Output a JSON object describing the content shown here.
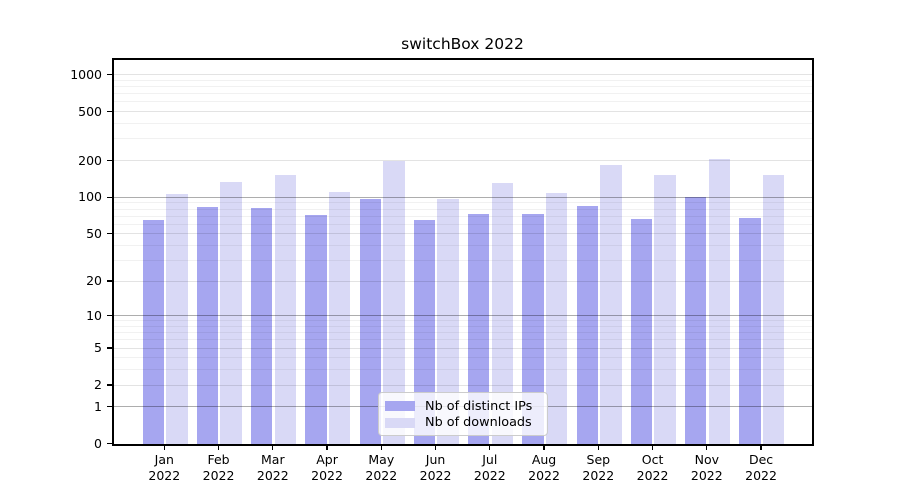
{
  "title": "switchBox 2022",
  "colors": {
    "distinct_ips": "#a6a6f0",
    "downloads": "#d9d9f6",
    "grid_decade": "rgba(0,0,0,0.32)",
    "grid_major": "rgba(0,0,0,0.11)",
    "grid_minor": "rgba(0,0,0,0.055)",
    "axis": "#000000"
  },
  "legend": {
    "items": [
      {
        "label": "Nb of distinct IPs",
        "color_key": "distinct_ips"
      },
      {
        "label": "Nb of downloads",
        "color_key": "downloads"
      }
    ]
  },
  "chart_data": {
    "type": "bar",
    "title": "switchBox 2022",
    "xlabel": "",
    "ylabel": "",
    "yscale": "log1p",
    "ylim": [
      0,
      1340
    ],
    "grid": true,
    "legend_position": "lower center",
    "categories": [
      "Jan",
      "Feb",
      "Mar",
      "Apr",
      "May",
      "Jun",
      "Jul",
      "Aug",
      "Sep",
      "Oct",
      "Nov",
      "Dec"
    ],
    "category_year": "2022",
    "series": [
      {
        "name": "Nb of distinct IPs",
        "values": [
          65,
          83,
          82,
          71,
          96,
          65,
          73,
          73,
          85,
          66,
          100,
          68
        ]
      },
      {
        "name": "Nb of downloads",
        "values": [
          106,
          134,
          152,
          110,
          198,
          97,
          130,
          108,
          184,
          152,
          206,
          152
        ]
      }
    ],
    "yticks": [
      0,
      1,
      2,
      5,
      10,
      20,
      50,
      100,
      200,
      500,
      1000
    ],
    "yticks_decade_emphasis": [
      1,
      10,
      100
    ],
    "yminor_ticks": [
      3,
      4,
      6,
      7,
      8,
      9,
      30,
      40,
      60,
      70,
      80,
      90,
      300,
      400,
      600,
      700,
      800,
      900
    ]
  }
}
